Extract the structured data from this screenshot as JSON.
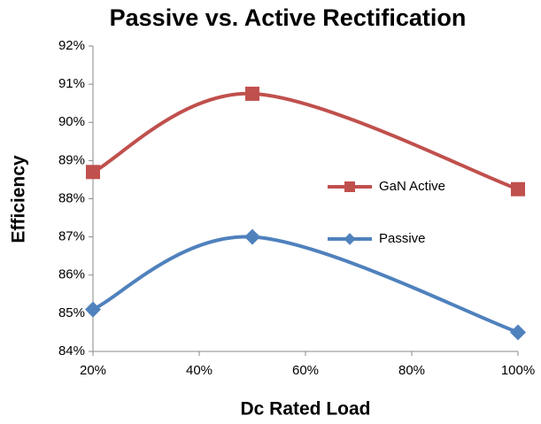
{
  "chart_data": {
    "type": "line",
    "title": "Passive vs. Active Rectification",
    "x_label": "Dc Rated Load",
    "y_label": "Efficiency",
    "x": [
      20,
      50,
      100
    ],
    "series": [
      {
        "name": "GaN Active",
        "color": "#c0504d",
        "marker": "square",
        "values": [
          88.7,
          90.75,
          88.25
        ]
      },
      {
        "name": "Passive",
        "color": "#4f81bd",
        "marker": "diamond",
        "values": [
          85.1,
          87.0,
          84.5
        ]
      }
    ],
    "xlim": [
      20,
      100
    ],
    "xticks": [
      {
        "value": 20,
        "label": "20%"
      },
      {
        "value": 40,
        "label": "40%"
      },
      {
        "value": 60,
        "label": "60%"
      },
      {
        "value": 80,
        "label": "80%"
      },
      {
        "value": 100,
        "label": "100%"
      }
    ],
    "ylim": [
      84,
      92
    ],
    "yticks": [
      {
        "value": 84,
        "label": "84%"
      },
      {
        "value": 85,
        "label": "85%"
      },
      {
        "value": 86,
        "label": "86%"
      },
      {
        "value": 87,
        "label": "87%"
      },
      {
        "value": 88,
        "label": "88%"
      },
      {
        "value": 89,
        "label": "89%"
      },
      {
        "value": 90,
        "label": "90%"
      },
      {
        "value": 91,
        "label": "91%"
      },
      {
        "value": 92,
        "label": "92%"
      }
    ],
    "smooth": true
  }
}
